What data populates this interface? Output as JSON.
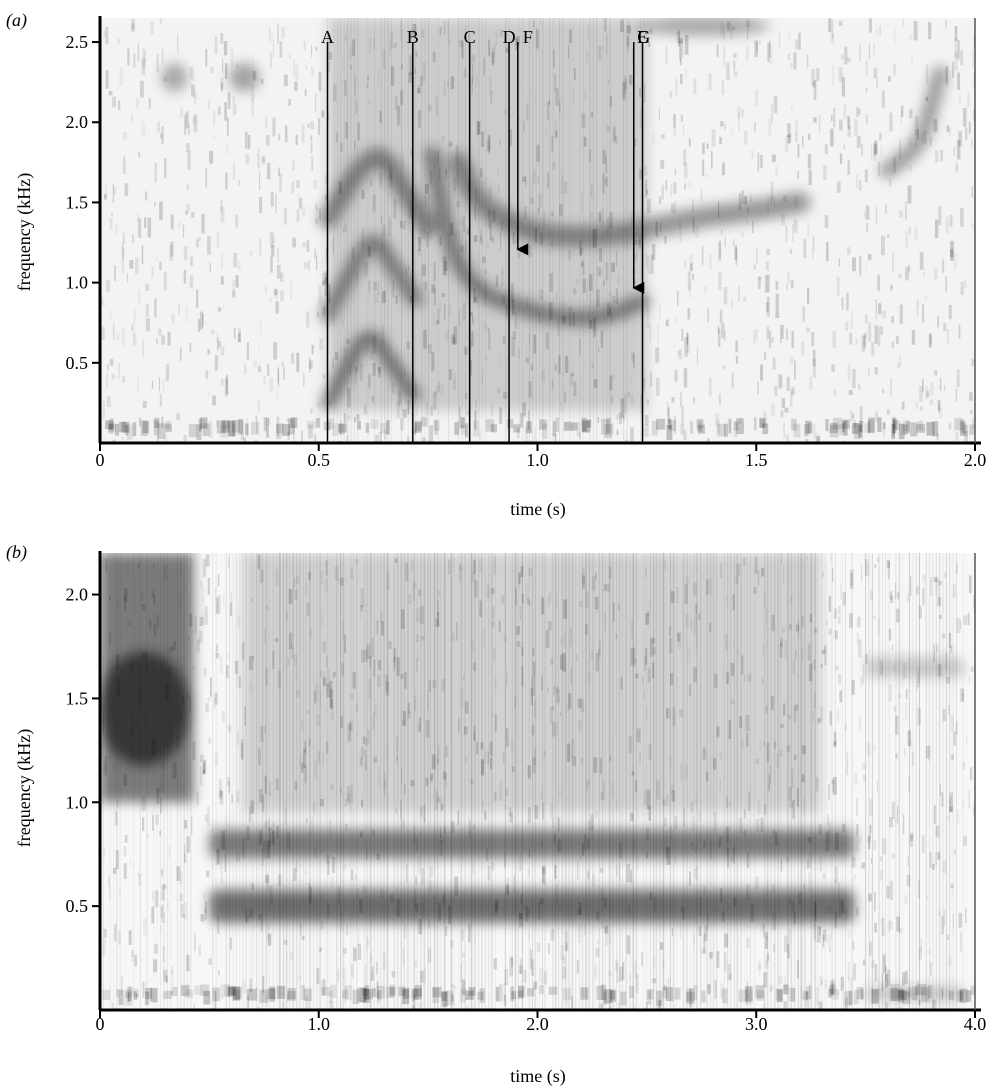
{
  "chart_data": [
    {
      "panel_label": "(a)",
      "type": "heatmap",
      "xlabel": "time (s)",
      "ylabel": "frequency (kHz)",
      "xlim": [
        0,
        2.0
      ],
      "ylim": [
        0,
        2.65
      ],
      "xticks": [
        0,
        0.5,
        1.0,
        1.5,
        2.0
      ],
      "xtick_labels": [
        "0",
        "0.5",
        "1.0",
        "1.5",
        "2.0"
      ],
      "yticks": [
        0.5,
        1.0,
        1.5,
        2.0,
        2.5
      ],
      "ytick_labels": [
        "0.5",
        "1.0",
        "1.5",
        "2.0",
        "2.5"
      ],
      "markers": [
        {
          "label": "A",
          "time": 0.52
        },
        {
          "label": "B",
          "time": 0.715
        },
        {
          "label": "C",
          "time": 0.845
        },
        {
          "label": "D",
          "time": 0.935
        },
        {
          "label": "E",
          "time": 1.24
        }
      ],
      "arrows": [
        {
          "label": "F",
          "time": 0.955,
          "from_freq": 2.5,
          "to_freq": 1.17
        },
        {
          "label": "G",
          "time": 1.22,
          "from_freq": 2.5,
          "to_freq": 0.93
        }
      ],
      "bands": [
        {
          "type": "arc",
          "points": [
            [
              0.52,
              0.25
            ],
            [
              0.56,
              0.45
            ],
            [
              0.615,
              0.72
            ],
            [
              0.67,
              0.48
            ],
            [
              0.715,
              0.3
            ]
          ],
          "w": 0.09,
          "a": 0.45
        },
        {
          "type": "arc",
          "points": [
            [
              0.52,
              0.8
            ],
            [
              0.58,
              1.1
            ],
            [
              0.625,
              1.3
            ],
            [
              0.67,
              1.1
            ],
            [
              0.72,
              0.9
            ]
          ],
          "w": 0.1,
          "a": 0.4
        },
        {
          "type": "arc",
          "points": [
            [
              0.52,
              1.4
            ],
            [
              0.6,
              1.75
            ],
            [
              0.65,
              1.8
            ],
            [
              0.7,
              1.55
            ],
            [
              0.75,
              1.35
            ]
          ],
          "w": 0.12,
          "a": 0.4
        },
        {
          "type": "arc",
          "points": [
            [
              0.76,
              1.8
            ],
            [
              0.8,
              1.2
            ],
            [
              0.86,
              0.95
            ],
            [
              0.95,
              0.85
            ],
            [
              1.05,
              0.78
            ],
            [
              1.15,
              0.78
            ],
            [
              1.24,
              0.88
            ]
          ],
          "w": 0.1,
          "a": 0.42
        },
        {
          "type": "arc",
          "points": [
            [
              0.82,
              1.75
            ],
            [
              0.86,
              1.5
            ],
            [
              0.95,
              1.35
            ],
            [
              1.05,
              1.28
            ],
            [
              1.2,
              1.3
            ],
            [
              1.35,
              1.4
            ],
            [
              1.5,
              1.45
            ],
            [
              1.6,
              1.5
            ]
          ],
          "w": 0.13,
          "a": 0.38
        },
        {
          "type": "arc",
          "points": [
            [
              1.8,
              1.7
            ],
            [
              1.85,
              1.8
            ],
            [
              1.88,
              1.9
            ],
            [
              1.9,
              2.1
            ],
            [
              1.92,
              2.3
            ]
          ],
          "w": 0.1,
          "a": 0.35
        },
        {
          "type": "blob",
          "t": 0.17,
          "f": 2.28,
          "w": 0.06,
          "h": 0.18,
          "a": 0.3
        },
        {
          "type": "blob",
          "t": 0.33,
          "f": 2.28,
          "w": 0.07,
          "h": 0.18,
          "a": 0.32
        },
        {
          "type": "blob",
          "t": 1.38,
          "f": 2.6,
          "w": 0.3,
          "h": 0.12,
          "a": 0.3
        },
        {
          "type": "region",
          "t0": 0.52,
          "t1": 1.25,
          "f0": 0.2,
          "f1": 2.65,
          "a": 0.16
        }
      ]
    },
    {
      "panel_label": "(b)",
      "type": "heatmap",
      "xlabel": "time (s)",
      "ylabel": "frequency (kHz)",
      "xlim": [
        0,
        4.0
      ],
      "ylim": [
        0,
        2.2
      ],
      "xticks": [
        0,
        1.0,
        2.0,
        3.0,
        4.0
      ],
      "xtick_labels": [
        "0",
        "1.0",
        "2.0",
        "3.0",
        "4.0"
      ],
      "yticks": [
        0.5,
        1.0,
        1.5,
        2.0
      ],
      "ytick_labels": [
        "0.5",
        "1.0",
        "1.5",
        "2.0"
      ],
      "bands": [
        {
          "type": "region",
          "t0": 0.0,
          "t1": 0.43,
          "f0": 1.0,
          "f1": 2.2,
          "a": 0.5
        },
        {
          "type": "blob",
          "t": 0.2,
          "f": 1.45,
          "w": 0.42,
          "h": 0.55,
          "a": 0.55
        },
        {
          "type": "band",
          "t0": 0.5,
          "t1": 3.45,
          "f": 0.5,
          "h": 0.16,
          "a": 0.55
        },
        {
          "type": "band",
          "t0": 0.5,
          "t1": 3.45,
          "f": 0.8,
          "h": 0.14,
          "a": 0.5
        },
        {
          "type": "region",
          "t0": 0.65,
          "t1": 3.3,
          "f0": 0.95,
          "f1": 2.2,
          "a": 0.15
        },
        {
          "type": "band",
          "t0": 3.5,
          "t1": 3.95,
          "f": 1.65,
          "h": 0.1,
          "a": 0.18
        },
        {
          "type": "band",
          "t0": 3.5,
          "t1": 3.95,
          "f": 0.08,
          "h": 0.06,
          "a": 0.22
        }
      ]
    }
  ]
}
